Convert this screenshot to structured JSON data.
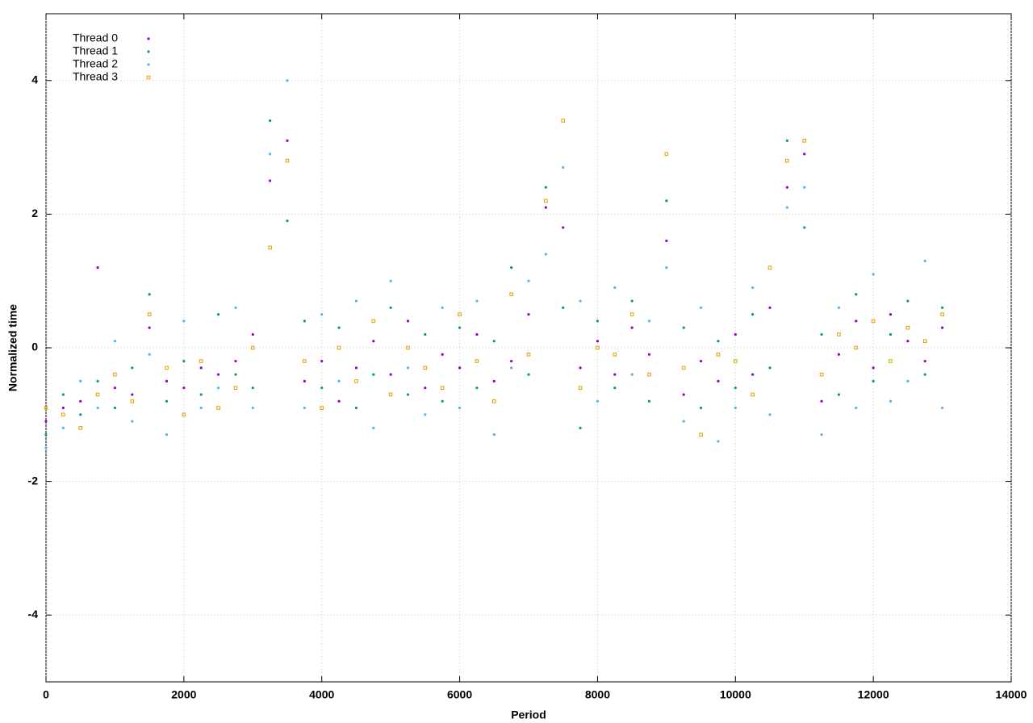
{
  "chart_data": {
    "type": "scatter",
    "xlabel": "Period",
    "ylabel": "Normalized time",
    "xlim": [
      0,
      14000
    ],
    "ylim": [
      -5,
      5
    ],
    "xticks": [
      0,
      2000,
      4000,
      6000,
      8000,
      10000,
      12000,
      14000
    ],
    "yticks": [
      -4,
      -2,
      0,
      2,
      4
    ],
    "grid": true,
    "legend": "top-left",
    "x": [
      0,
      250,
      500,
      750,
      1000,
      1250,
      1500,
      1750,
      2000,
      2250,
      2500,
      2750,
      3000,
      3250,
      3500,
      3750,
      4000,
      4250,
      4500,
      4750,
      5000,
      5250,
      5500,
      5750,
      6000,
      6250,
      6500,
      6750,
      7000,
      7250,
      7500,
      7750,
      8000,
      8250,
      8500,
      8750,
      9000,
      9250,
      9500,
      9750,
      10000,
      10250,
      10500,
      10750,
      11000,
      11250,
      11500,
      11750,
      12000,
      12250,
      12500,
      12750,
      13000
    ],
    "series": [
      {
        "name": "Thread 0",
        "color": "#9400d3",
        "marker": "dot",
        "values": [
          -1.1,
          -0.9,
          -0.8,
          1.2,
          -0.6,
          -0.7,
          0.3,
          -0.5,
          -0.6,
          -0.3,
          -0.4,
          -0.2,
          0.2,
          2.5,
          3.1,
          -0.5,
          -0.2,
          -0.8,
          -0.3,
          0.1,
          -0.4,
          0.4,
          -0.6,
          -0.1,
          -0.3,
          0.2,
          -0.5,
          -0.2,
          0.5,
          2.1,
          1.8,
          -0.3,
          0.1,
          -0.4,
          0.3,
          -0.1,
          1.6,
          -0.7,
          -0.2,
          -0.5,
          0.2,
          -0.4,
          0.6,
          2.4,
          2.9,
          -0.8,
          -0.1,
          0.4,
          -0.3,
          0.5,
          0.1,
          -0.2,
          0.3
        ]
      },
      {
        "name": "Thread 1",
        "color": "#009e73",
        "marker": "dot",
        "values": [
          -1.3,
          -0.7,
          -1.0,
          -0.5,
          -0.9,
          -0.3,
          0.8,
          -0.8,
          -0.2,
          -0.7,
          0.5,
          -0.4,
          -0.6,
          3.4,
          1.9,
          0.4,
          -0.6,
          0.3,
          -0.9,
          -0.4,
          0.6,
          -0.7,
          0.2,
          -0.8,
          0.3,
          -0.6,
          0.1,
          1.2,
          -0.4,
          2.4,
          0.6,
          -1.2,
          0.4,
          -0.6,
          0.7,
          -0.8,
          2.2,
          0.3,
          -0.9,
          0.1,
          -0.6,
          0.5,
          -0.3,
          3.1,
          1.8,
          0.2,
          -0.7,
          0.8,
          -0.5,
          0.2,
          0.7,
          -0.4,
          0.6
        ]
      },
      {
        "name": "Thread 2",
        "color": "#56b4e9",
        "marker": "dot",
        "values": [
          -1.5,
          -1.2,
          -0.5,
          -0.9,
          0.1,
          -1.1,
          -0.1,
          -1.3,
          0.4,
          -0.9,
          -0.6,
          0.6,
          -0.9,
          2.9,
          4.0,
          -0.9,
          0.5,
          -0.5,
          0.7,
          -1.2,
          1.0,
          -0.3,
          -1.0,
          0.6,
          -0.9,
          0.7,
          -1.3,
          -0.3,
          1.0,
          1.4,
          2.7,
          0.7,
          -0.8,
          0.9,
          -0.4,
          0.4,
          1.2,
          -1.1,
          0.6,
          -1.4,
          -0.9,
          0.9,
          -1.0,
          2.1,
          2.4,
          -1.3,
          0.6,
          -0.9,
          1.1,
          -0.8,
          -0.5,
          1.3,
          -0.9
        ]
      },
      {
        "name": "Thread 3",
        "color": "#e69f00",
        "marker": "square",
        "values": [
          -0.9,
          -1.0,
          -1.2,
          -0.7,
          -0.4,
          -0.8,
          0.5,
          -0.3,
          -1.0,
          -0.2,
          -0.9,
          -0.6,
          0.0,
          1.5,
          2.8,
          -0.2,
          -0.9,
          0.0,
          -0.5,
          0.4,
          -0.7,
          0.0,
          -0.3,
          -0.6,
          0.5,
          -0.2,
          -0.8,
          0.8,
          -0.1,
          2.2,
          3.4,
          -0.6,
          0.0,
          -0.1,
          0.5,
          -0.4,
          2.9,
          -0.3,
          -1.3,
          -0.1,
          -0.2,
          -0.7,
          1.2,
          2.8,
          3.1,
          -0.4,
          0.2,
          0.0,
          0.4,
          -0.2,
          0.3,
          0.1,
          0.5
        ]
      }
    ]
  }
}
